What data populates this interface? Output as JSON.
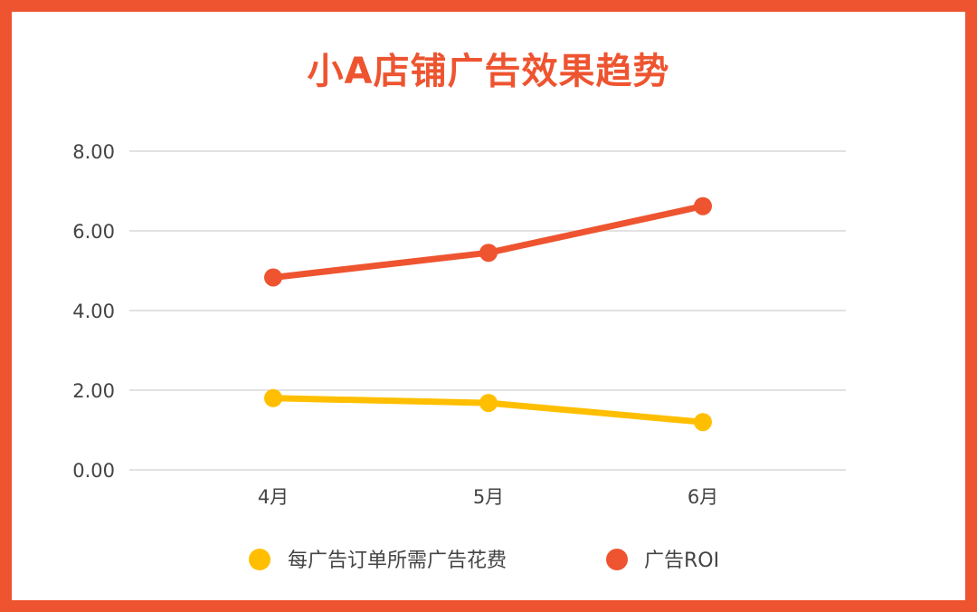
{
  "chart_data": {
    "type": "line",
    "title": "小A店铺广告效果趋势",
    "categories": [
      "4月",
      "5月",
      "6月"
    ],
    "series": [
      {
        "name": "每广告订单所需广告花费",
        "values": [
          1.8,
          1.68,
          1.2
        ],
        "color": "#ffbf00"
      },
      {
        "name": "广告ROI",
        "values": [
          4.83,
          5.45,
          6.62
        ],
        "color": "#ee5430"
      }
    ],
    "ylim": [
      0,
      8
    ],
    "yticks": [
      "0.00",
      "2.00",
      "4.00",
      "6.00",
      "8.00"
    ],
    "grid": true,
    "legend_position": "bottom",
    "colors": {
      "frame": "#ee5430",
      "title": "#ee5430",
      "grid": "#d9d9d9"
    }
  }
}
